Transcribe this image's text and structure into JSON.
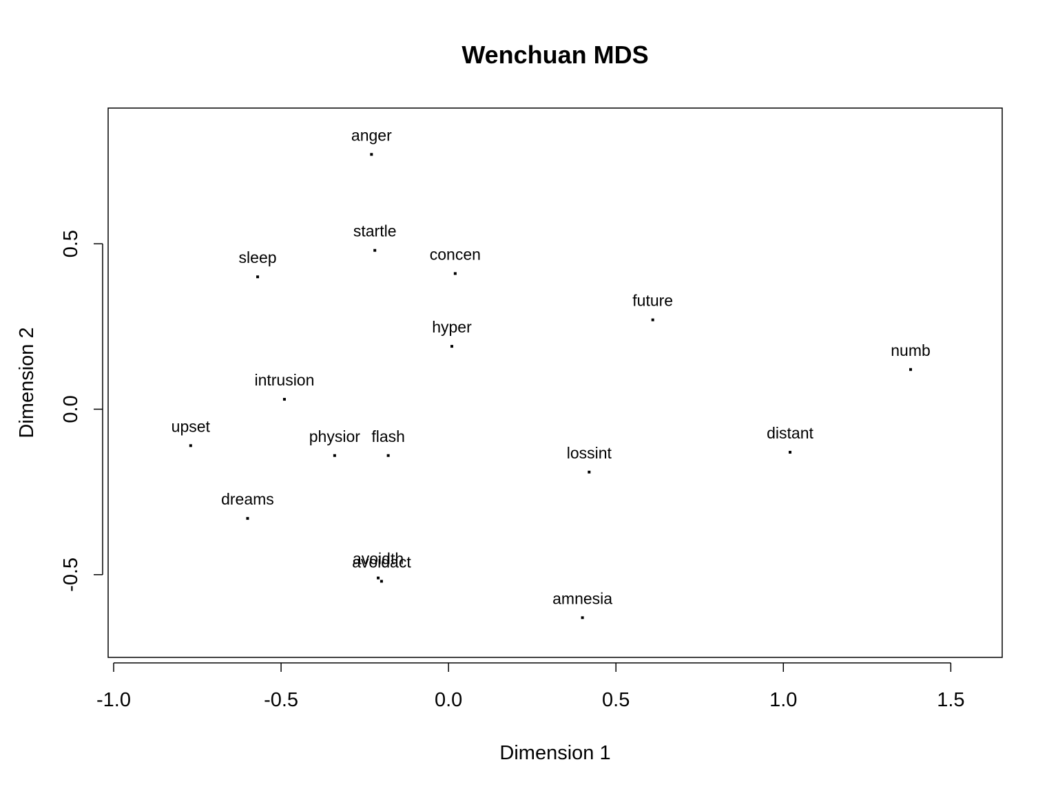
{
  "chart_data": {
    "type": "scatter",
    "title": "Wenchuan MDS",
    "xlabel": "Dimension 1",
    "ylabel": "Dimension 2",
    "xlim": [
      -1.0,
      1.67
    ],
    "ylim": [
      -0.75,
      0.91
    ],
    "xticks": [
      -1.0,
      -0.5,
      0.0,
      0.5,
      1.0,
      1.5
    ],
    "xtick_labels": [
      "-1.0",
      "-0.5",
      "0.0",
      "0.5",
      "1.0",
      "1.5"
    ],
    "yticks": [
      -0.5,
      0.0,
      0.5
    ],
    "ytick_labels": [
      "-0.5",
      "0.0",
      "0.5"
    ],
    "grid": false,
    "points": [
      {
        "label": "anger",
        "x": -0.23,
        "y": 0.77
      },
      {
        "label": "startle",
        "x": -0.22,
        "y": 0.48
      },
      {
        "label": "concen",
        "x": 0.02,
        "y": 0.41
      },
      {
        "label": "sleep",
        "x": -0.57,
        "y": 0.4
      },
      {
        "label": "future",
        "x": 0.61,
        "y": 0.27
      },
      {
        "label": "hyper",
        "x": 0.01,
        "y": 0.19
      },
      {
        "label": "numb",
        "x": 1.38,
        "y": 0.12
      },
      {
        "label": "intrusion",
        "x": -0.49,
        "y": 0.03
      },
      {
        "label": "upset",
        "x": -0.77,
        "y": -0.11
      },
      {
        "label": "physior",
        "x": -0.34,
        "y": -0.14
      },
      {
        "label": "flash",
        "x": -0.18,
        "y": -0.14
      },
      {
        "label": "distant",
        "x": 1.02,
        "y": -0.13
      },
      {
        "label": "lossint",
        "x": 0.42,
        "y": -0.19
      },
      {
        "label": "dreams",
        "x": -0.6,
        "y": -0.33
      },
      {
        "label": "avoidth",
        "x": -0.21,
        "y": -0.51
      },
      {
        "label": "avoidact",
        "x": -0.2,
        "y": -0.52
      },
      {
        "label": "amnesia",
        "x": 0.4,
        "y": -0.63
      }
    ]
  }
}
